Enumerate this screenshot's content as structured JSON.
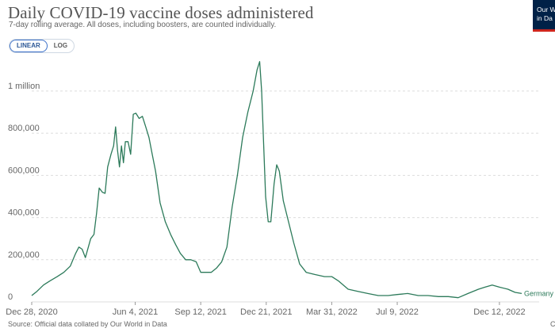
{
  "title": "Daily COVID-19 vaccine doses administered",
  "subtitle": "7-day rolling average. All doses, including boosters, are counted individually.",
  "logo": {
    "line1": "Our W",
    "line2": "in Da"
  },
  "toggle": {
    "linear": "LINEAR",
    "log": "LOG",
    "selected": "LINEAR"
  },
  "source": "Source: Official data collated by Our World in Data",
  "license_mark": "C",
  "colors": {
    "series": "#2c7a5a",
    "grid": "#dcdcdc",
    "text": "#666666"
  },
  "chart_data": {
    "type": "line",
    "title": "Daily COVID-19 vaccine doses administered",
    "xlabel": "",
    "ylabel": "",
    "ylim": [
      0,
      1150000
    ],
    "y_ticks": [
      {
        "value": 0,
        "label": "0"
      },
      {
        "value": 200000,
        "label": "200,000"
      },
      {
        "value": 400000,
        "label": "400,000"
      },
      {
        "value": 600000,
        "label": "600,000"
      },
      {
        "value": 800000,
        "label": "800,000"
      },
      {
        "value": 1000000,
        "label": "1 million"
      }
    ],
    "x_ticks": [
      {
        "date": "2020-12-28",
        "label": "Dec 28, 2020"
      },
      {
        "date": "2021-06-04",
        "label": "Jun 4, 2021"
      },
      {
        "date": "2021-09-12",
        "label": "Sep 12, 2021"
      },
      {
        "date": "2021-12-21",
        "label": "Dec 21, 2021"
      },
      {
        "date": "2022-03-31",
        "label": "Mar 31, 2022"
      },
      {
        "date": "2022-07-09",
        "label": "Jul 9, 2022"
      },
      {
        "date": "2022-12-12",
        "label": "Dec 12, 2022"
      }
    ],
    "grid": true,
    "series": [
      {
        "name": "Germany",
        "color": "#2c7a5a",
        "points": [
          [
            "2020-12-28",
            30000
          ],
          [
            "2021-01-05",
            50000
          ],
          [
            "2021-01-15",
            80000
          ],
          [
            "2021-01-25",
            100000
          ],
          [
            "2021-02-05",
            120000
          ],
          [
            "2021-02-15",
            140000
          ],
          [
            "2021-02-25",
            170000
          ],
          [
            "2021-03-05",
            230000
          ],
          [
            "2021-03-10",
            260000
          ],
          [
            "2021-03-15",
            250000
          ],
          [
            "2021-03-20",
            210000
          ],
          [
            "2021-03-28",
            300000
          ],
          [
            "2021-04-02",
            320000
          ],
          [
            "2021-04-06",
            420000
          ],
          [
            "2021-04-10",
            540000
          ],
          [
            "2021-04-15",
            520000
          ],
          [
            "2021-04-19",
            515000
          ],
          [
            "2021-04-23",
            640000
          ],
          [
            "2021-04-28",
            700000
          ],
          [
            "2021-05-02",
            740000
          ],
          [
            "2021-05-05",
            830000
          ],
          [
            "2021-05-08",
            720000
          ],
          [
            "2021-05-11",
            640000
          ],
          [
            "2021-05-14",
            740000
          ],
          [
            "2021-05-17",
            660000
          ],
          [
            "2021-05-20",
            760000
          ],
          [
            "2021-05-24",
            760000
          ],
          [
            "2021-05-28",
            700000
          ],
          [
            "2021-06-01",
            890000
          ],
          [
            "2021-06-05",
            895000
          ],
          [
            "2021-06-10",
            870000
          ],
          [
            "2021-06-15",
            880000
          ],
          [
            "2021-06-20",
            830000
          ],
          [
            "2021-06-25",
            780000
          ],
          [
            "2021-06-30",
            700000
          ],
          [
            "2021-07-05",
            620000
          ],
          [
            "2021-07-12",
            470000
          ],
          [
            "2021-07-20",
            380000
          ],
          [
            "2021-07-28",
            320000
          ],
          [
            "2021-08-05",
            270000
          ],
          [
            "2021-08-12",
            230000
          ],
          [
            "2021-08-20",
            200000
          ],
          [
            "2021-08-28",
            200000
          ],
          [
            "2021-09-05",
            190000
          ],
          [
            "2021-09-12",
            140000
          ],
          [
            "2021-09-20",
            140000
          ],
          [
            "2021-09-28",
            140000
          ],
          [
            "2021-10-06",
            160000
          ],
          [
            "2021-10-14",
            190000
          ],
          [
            "2021-10-22",
            260000
          ],
          [
            "2021-10-30",
            450000
          ],
          [
            "2021-11-07",
            600000
          ],
          [
            "2021-11-15",
            780000
          ],
          [
            "2021-11-23",
            900000
          ],
          [
            "2021-12-01",
            1000000
          ],
          [
            "2021-12-07",
            1100000
          ],
          [
            "2021-12-11",
            1140000
          ],
          [
            "2021-12-14",
            1000000
          ],
          [
            "2021-12-17",
            750000
          ],
          [
            "2021-12-20",
            500000
          ],
          [
            "2021-12-24",
            380000
          ],
          [
            "2021-12-28",
            380000
          ],
          [
            "2022-01-02",
            560000
          ],
          [
            "2022-01-06",
            650000
          ],
          [
            "2022-01-10",
            620000
          ],
          [
            "2022-01-16",
            480000
          ],
          [
            "2022-01-24",
            380000
          ],
          [
            "2022-02-01",
            280000
          ],
          [
            "2022-02-10",
            180000
          ],
          [
            "2022-02-20",
            140000
          ],
          [
            "2022-03-05",
            130000
          ],
          [
            "2022-03-20",
            120000
          ],
          [
            "2022-03-31",
            120000
          ],
          [
            "2022-04-10",
            100000
          ],
          [
            "2022-04-25",
            60000
          ],
          [
            "2022-05-10",
            50000
          ],
          [
            "2022-05-25",
            40000
          ],
          [
            "2022-06-10",
            30000
          ],
          [
            "2022-06-25",
            30000
          ],
          [
            "2022-07-09",
            35000
          ],
          [
            "2022-07-25",
            40000
          ],
          [
            "2022-08-10",
            30000
          ],
          [
            "2022-08-25",
            30000
          ],
          [
            "2022-09-10",
            25000
          ],
          [
            "2022-09-25",
            25000
          ],
          [
            "2022-10-10",
            20000
          ],
          [
            "2022-10-25",
            40000
          ],
          [
            "2022-11-10",
            60000
          ],
          [
            "2022-11-20",
            70000
          ],
          [
            "2022-12-01",
            80000
          ],
          [
            "2022-12-12",
            70000
          ],
          [
            "2022-12-25",
            60000
          ],
          [
            "2023-01-05",
            45000
          ],
          [
            "2023-01-15",
            40000
          ]
        ]
      }
    ]
  }
}
